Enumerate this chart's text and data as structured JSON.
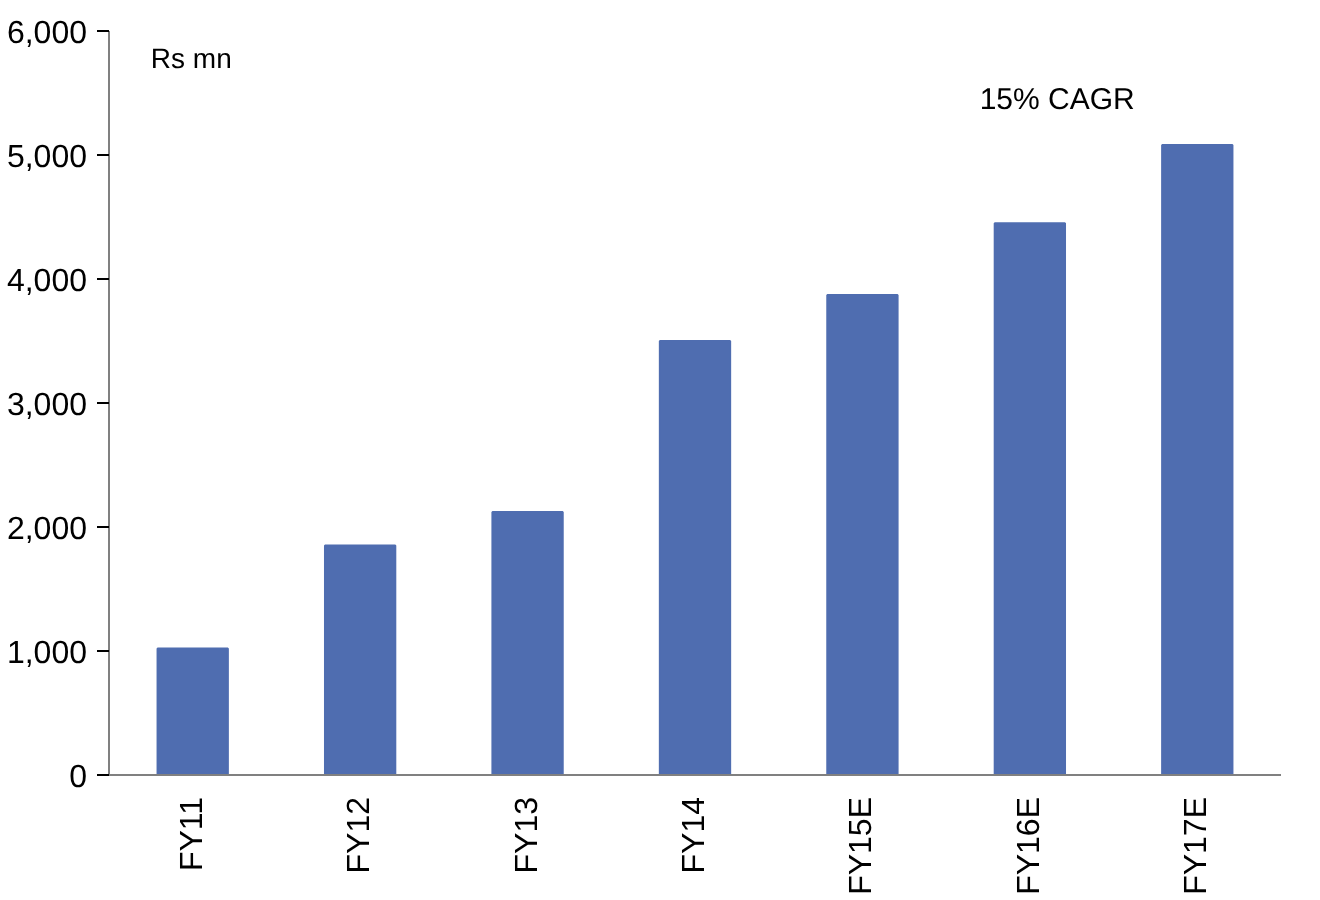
{
  "chart_data": {
    "type": "bar",
    "categories": [
      "FY11",
      "FY12",
      "FY13",
      "FY14",
      "FY15E",
      "FY16E",
      "FY17E"
    ],
    "values": [
      1020,
      1850,
      2120,
      3500,
      3870,
      4450,
      5080
    ],
    "color": "#4f6db0",
    "ylim": [
      0,
      6000
    ],
    "yticks": [
      {
        "value": 0,
        "label": "0"
      },
      {
        "value": 1000,
        "label": "1,000"
      },
      {
        "value": 2000,
        "label": "2,000"
      },
      {
        "value": 3000,
        "label": "3,000"
      },
      {
        "value": 4000,
        "label": "4,000"
      },
      {
        "value": 5000,
        "label": "5,000"
      },
      {
        "value": 6000,
        "label": "6,000"
      }
    ],
    "grid": false,
    "annotations": [
      "Rs mn",
      "15% CAGR"
    ]
  }
}
